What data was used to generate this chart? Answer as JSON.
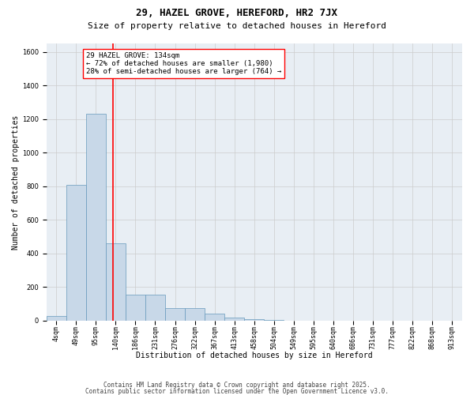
{
  "title1": "29, HAZEL GROVE, HEREFORD, HR2 7JX",
  "title2": "Size of property relative to detached houses in Hereford",
  "xlabel": "Distribution of detached houses by size in Hereford",
  "ylabel": "Number of detached properties",
  "categories": [
    "4sqm",
    "49sqm",
    "95sqm",
    "140sqm",
    "186sqm",
    "231sqm",
    "276sqm",
    "322sqm",
    "367sqm",
    "413sqm",
    "458sqm",
    "504sqm",
    "549sqm",
    "595sqm",
    "640sqm",
    "686sqm",
    "731sqm",
    "777sqm",
    "822sqm",
    "868sqm",
    "913sqm"
  ],
  "values": [
    30,
    810,
    1230,
    460,
    155,
    155,
    75,
    75,
    40,
    18,
    10,
    5,
    0,
    0,
    0,
    0,
    0,
    0,
    0,
    0,
    0
  ],
  "bar_color": "#c8d8e8",
  "bar_edge_color": "#6699bb",
  "vline_color": "red",
  "annotation_text": "29 HAZEL GROVE: 134sqm\n← 72% of detached houses are smaller (1,980)\n28% of semi-detached houses are larger (764) →",
  "annotation_box_color": "white",
  "annotation_box_edge": "red",
  "ylim": [
    0,
    1650
  ],
  "yticks": [
    0,
    200,
    400,
    600,
    800,
    1000,
    1200,
    1400,
    1600
  ],
  "grid_color": "#cccccc",
  "bg_color": "#e8eef4",
  "footer1": "Contains HM Land Registry data © Crown copyright and database right 2025.",
  "footer2": "Contains public sector information licensed under the Open Government Licence v3.0.",
  "title1_fontsize": 9,
  "title2_fontsize": 8,
  "axis_label_fontsize": 7,
  "tick_fontsize": 6,
  "annotation_fontsize": 6.5,
  "footer_fontsize": 5.5
}
